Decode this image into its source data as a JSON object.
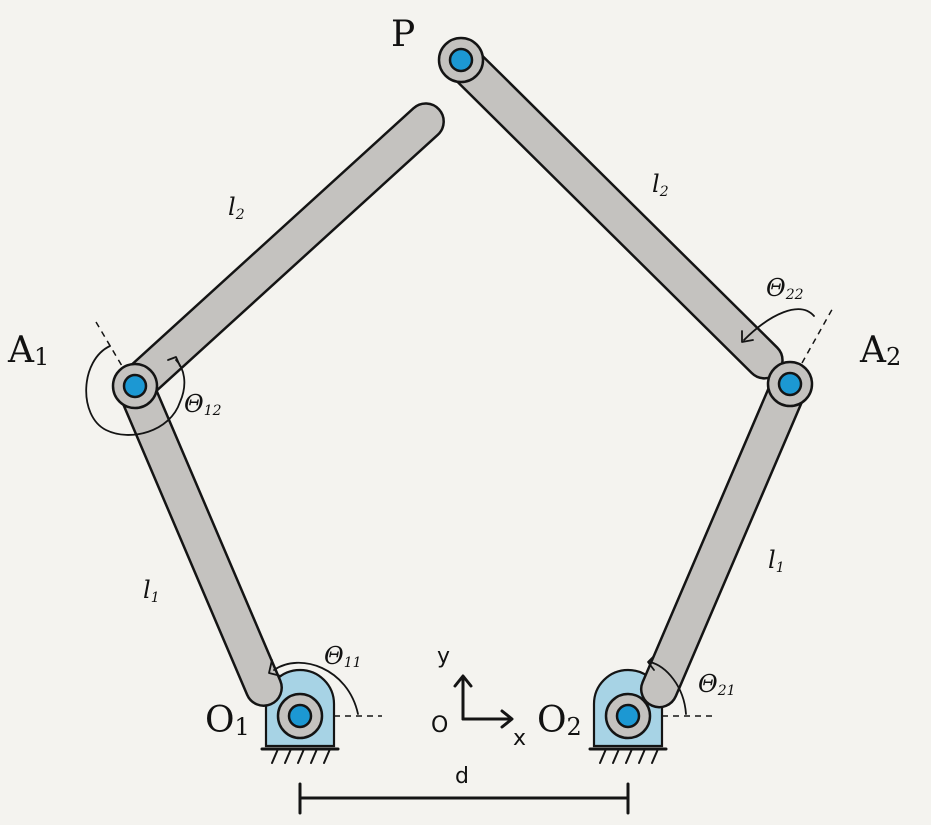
{
  "labels": {
    "P": "P",
    "A1": {
      "main": "A",
      "sub": "1"
    },
    "A2": {
      "main": "A",
      "sub": "2"
    },
    "O1": {
      "main": "O",
      "sub": "1"
    },
    "O2": {
      "main": "O",
      "sub": "2"
    },
    "l2_left": {
      "main": "l",
      "sub": "2"
    },
    "l2_right": {
      "main": "l",
      "sub": "2"
    },
    "l1_left": {
      "main": "l",
      "sub": "1"
    },
    "l1_right": {
      "main": "l",
      "sub": "1"
    },
    "theta11": {
      "main": "Θ",
      "sub": "11"
    },
    "theta12": {
      "main": "Θ",
      "sub": "12"
    },
    "theta21": {
      "main": "Θ",
      "sub": "21"
    },
    "theta22": {
      "main": "Θ",
      "sub": "22"
    },
    "origin": "O",
    "x_axis": "x",
    "y_axis": "y",
    "distance": "d"
  },
  "colors": {
    "link": "#c4c2bf",
    "pin": "#1c98d3",
    "base": "#a7d3e5",
    "background": "#f4f3ef"
  }
}
